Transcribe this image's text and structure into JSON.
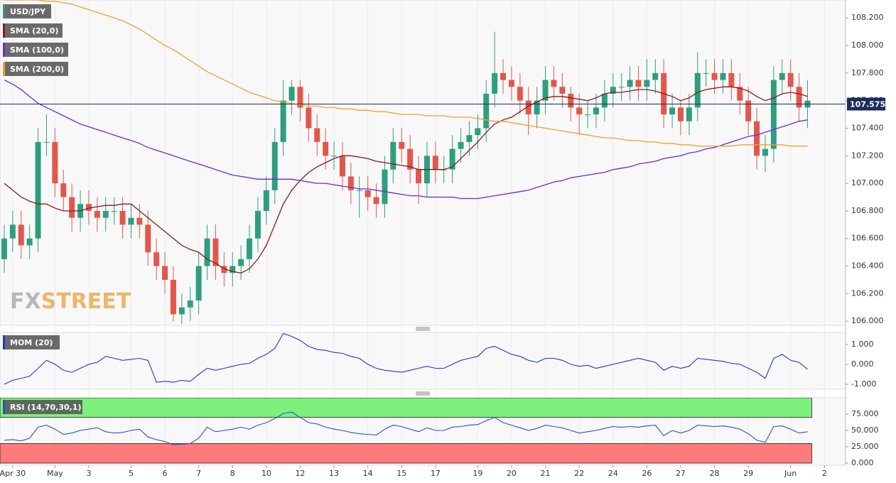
{
  "chart_data": [
    {
      "type": "candlestick",
      "title": "USD/JPY",
      "categories": [
        null,
        "Apr 30",
        null,
        null,
        null,
        null,
        "May",
        null,
        null,
        null,
        "3",
        null,
        null,
        null,
        null,
        "5",
        null,
        null,
        null,
        "6",
        null,
        null,
        null,
        "7",
        null,
        null,
        null,
        "8",
        null,
        null,
        null,
        "10",
        null,
        null,
        null,
        "12",
        null,
        null,
        null,
        "13",
        null,
        null,
        null,
        "14",
        null,
        null,
        null,
        "15",
        null,
        null,
        null,
        "17",
        null,
        null,
        null,
        null,
        "19",
        null,
        null,
        null,
        "20",
        null,
        null,
        null,
        "21",
        null,
        null,
        null,
        "22",
        null,
        null,
        null,
        "24",
        null,
        null,
        null,
        "26",
        null,
        null,
        null,
        "27",
        null,
        null,
        null,
        "28",
        null,
        null,
        null,
        "29",
        null,
        null,
        null,
        null,
        "Jun",
        null,
        null,
        null,
        "2",
        null,
        null
      ],
      "open": [
        106.45,
        106.6,
        106.7,
        106.55,
        106.6,
        107.3,
        107.3,
        107.0,
        106.9,
        106.75,
        106.85,
        106.8,
        106.75,
        106.8,
        106.8,
        106.7,
        106.75,
        106.7,
        106.5,
        106.4,
        106.3,
        106.05,
        106.1,
        106.15,
        106.4,
        106.6,
        106.4,
        106.35,
        106.4,
        106.45,
        106.6,
        106.8,
        106.95,
        107.3,
        107.6,
        107.7,
        107.55,
        107.4,
        107.3,
        107.2,
        107.2,
        107.05,
        106.95,
        106.95,
        106.9,
        106.85,
        107.1,
        107.3,
        107.25,
        107.1,
        107.0,
        107.2,
        107.1,
        107.1,
        107.25,
        107.3,
        107.35,
        107.4,
        107.65,
        107.8,
        107.75,
        107.7,
        107.6,
        107.5,
        107.6,
        107.75,
        107.7,
        107.65,
        107.55,
        107.5,
        107.5,
        107.55,
        107.65,
        107.7,
        107.7,
        107.75,
        107.7,
        107.75,
        107.8,
        107.5,
        107.55,
        107.45,
        107.55,
        107.8,
        107.8,
        107.75,
        107.8,
        107.7,
        107.6,
        107.45,
        107.2,
        107.25,
        107.75,
        107.8,
        107.7,
        107.55,
        null,
        null,
        null,
        null
      ],
      "high": [
        106.7,
        106.8,
        106.8,
        106.7,
        107.4,
        107.5,
        107.4,
        107.1,
        107.0,
        106.95,
        106.95,
        106.9,
        106.9,
        106.9,
        106.9,
        106.85,
        106.85,
        106.8,
        106.6,
        106.5,
        106.4,
        106.2,
        106.25,
        106.5,
        106.7,
        106.7,
        106.5,
        106.5,
        106.55,
        106.7,
        106.9,
        107.05,
        107.4,
        107.75,
        107.75,
        107.75,
        107.65,
        107.5,
        107.4,
        107.3,
        107.3,
        107.15,
        107.05,
        107.05,
        107.0,
        107.2,
        107.4,
        107.4,
        107.35,
        107.2,
        107.3,
        107.3,
        107.2,
        107.35,
        107.4,
        107.45,
        107.5,
        107.75,
        108.1,
        107.9,
        107.85,
        107.8,
        107.7,
        107.7,
        107.85,
        107.85,
        107.8,
        107.7,
        107.65,
        107.6,
        107.65,
        107.75,
        107.8,
        107.8,
        107.85,
        107.85,
        107.9,
        107.9,
        107.9,
        107.65,
        107.6,
        107.65,
        107.95,
        107.9,
        107.9,
        107.9,
        107.9,
        107.8,
        107.7,
        107.55,
        107.35,
        107.85,
        107.9,
        107.9,
        107.8,
        107.75,
        null,
        null,
        null,
        null
      ],
      "low": [
        106.35,
        106.5,
        106.45,
        106.45,
        106.5,
        107.2,
        106.9,
        106.8,
        106.65,
        106.65,
        106.7,
        106.65,
        106.65,
        106.7,
        106.6,
        106.6,
        106.6,
        106.4,
        106.3,
        106.2,
        106.0,
        105.98,
        106.0,
        106.05,
        106.3,
        106.3,
        106.25,
        106.25,
        106.3,
        106.35,
        106.5,
        106.7,
        106.85,
        107.2,
        107.5,
        107.45,
        107.3,
        107.2,
        107.1,
        107.1,
        106.95,
        106.85,
        106.75,
        106.8,
        106.75,
        106.75,
        107.0,
        107.15,
        107.0,
        106.85,
        106.9,
        107.0,
        107.0,
        107.0,
        107.15,
        107.2,
        107.25,
        107.3,
        107.55,
        107.65,
        107.6,
        107.5,
        107.35,
        107.4,
        107.5,
        107.6,
        107.55,
        107.45,
        107.35,
        107.4,
        107.4,
        107.45,
        107.55,
        107.6,
        107.6,
        107.6,
        107.6,
        107.65,
        107.4,
        107.4,
        107.35,
        107.35,
        107.45,
        107.7,
        107.65,
        107.65,
        107.6,
        107.5,
        107.35,
        107.1,
        107.08,
        107.15,
        107.65,
        107.6,
        107.45,
        107.4,
        null,
        null,
        null,
        null
      ],
      "close": [
        106.6,
        106.7,
        106.55,
        106.6,
        107.3,
        107.3,
        107.0,
        106.9,
        106.75,
        106.85,
        106.8,
        106.75,
        106.8,
        106.8,
        106.7,
        106.75,
        106.7,
        106.5,
        106.4,
        106.3,
        106.05,
        106.1,
        106.15,
        106.4,
        106.6,
        106.4,
        106.35,
        106.4,
        106.45,
        106.6,
        106.8,
        106.95,
        107.3,
        107.6,
        107.7,
        107.55,
        107.4,
        107.3,
        107.2,
        107.2,
        107.05,
        106.95,
        106.95,
        106.9,
        106.85,
        107.1,
        107.3,
        107.25,
        107.1,
        107.0,
        107.2,
        107.1,
        107.1,
        107.25,
        107.3,
        107.35,
        107.4,
        107.65,
        107.8,
        107.75,
        107.7,
        107.6,
        107.5,
        107.6,
        107.75,
        107.7,
        107.65,
        107.55,
        107.5,
        107.5,
        107.55,
        107.65,
        107.7,
        107.7,
        107.75,
        107.7,
        107.75,
        107.8,
        107.5,
        107.55,
        107.45,
        107.55,
        107.8,
        107.8,
        107.75,
        107.8,
        107.7,
        107.6,
        107.45,
        107.2,
        107.25,
        107.75,
        107.8,
        107.7,
        107.55,
        107.6,
        null,
        null,
        null,
        null
      ],
      "up_color": "#2f9e7f",
      "down_color": "#e2574c",
      "series": [
        {
          "name": "SMA (20,0)",
          "color": "#8b1a1a",
          "values": [
            107.0,
            106.95,
            106.9,
            106.87,
            106.85,
            106.85,
            106.82,
            106.8,
            106.8,
            106.8,
            106.82,
            106.83,
            106.84,
            106.84,
            106.85,
            106.85,
            106.8,
            106.75,
            106.7,
            106.65,
            106.6,
            106.55,
            106.52,
            106.5,
            106.45,
            106.42,
            106.38,
            106.36,
            106.35,
            106.38,
            106.45,
            106.55,
            106.7,
            106.85,
            106.95,
            107.02,
            107.08,
            107.12,
            107.15,
            107.18,
            107.2,
            107.2,
            107.19,
            107.18,
            107.16,
            107.15,
            107.14,
            107.13,
            107.12,
            107.1,
            107.1,
            107.1,
            107.1,
            107.12,
            107.18,
            107.24,
            107.3,
            107.37,
            107.43,
            107.46,
            107.48,
            107.52,
            107.56,
            107.59,
            107.62,
            107.63,
            107.63,
            107.62,
            107.61,
            107.6,
            107.62,
            107.65,
            107.66,
            107.66,
            107.67,
            107.68,
            107.68,
            107.67,
            107.65,
            107.63,
            107.6,
            107.62,
            107.66,
            107.68,
            107.69,
            107.7,
            107.7,
            107.69,
            107.67,
            107.63,
            107.6,
            107.62,
            107.65,
            107.66,
            107.65,
            107.63,
            null,
            null,
            null,
            null
          ]
        },
        {
          "name": "SMA (100,0)",
          "color": "#6a2bd9",
          "values": [
            107.75,
            107.72,
            107.68,
            107.63,
            107.58,
            107.55,
            107.52,
            107.49,
            107.46,
            107.43,
            107.41,
            107.39,
            107.37,
            107.35,
            107.33,
            107.31,
            107.29,
            107.26,
            107.24,
            107.22,
            107.2,
            107.18,
            107.16,
            107.14,
            107.12,
            107.1,
            107.08,
            107.06,
            107.05,
            107.04,
            107.03,
            107.03,
            107.03,
            107.03,
            107.03,
            107.02,
            107.01,
            107.0,
            107.0,
            106.99,
            106.98,
            106.97,
            106.96,
            106.96,
            106.95,
            106.94,
            106.93,
            106.92,
            106.91,
            106.91,
            106.9,
            106.9,
            106.9,
            106.9,
            106.89,
            106.89,
            106.89,
            106.9,
            106.91,
            106.92,
            106.93,
            106.94,
            106.95,
            106.97,
            106.99,
            107.01,
            107.02,
            107.04,
            107.05,
            107.06,
            107.07,
            107.08,
            107.1,
            107.11,
            107.12,
            107.14,
            107.15,
            107.16,
            107.18,
            107.19,
            107.2,
            107.22,
            107.23,
            107.25,
            107.26,
            107.28,
            107.3,
            107.32,
            107.34,
            107.35,
            107.37,
            107.39,
            107.41,
            107.43,
            107.45,
            107.46,
            null,
            null,
            null,
            null
          ]
        },
        {
          "name": "SMA (200,0)",
          "color": "#f0a030",
          "values": [
            108.33,
            108.33,
            108.33,
            108.33,
            108.33,
            108.32,
            108.32,
            108.31,
            108.3,
            108.28,
            108.26,
            108.24,
            108.22,
            108.2,
            108.18,
            108.15,
            108.12,
            108.08,
            108.04,
            108.0,
            107.97,
            107.93,
            107.89,
            107.85,
            107.81,
            107.78,
            107.75,
            107.72,
            107.69,
            107.66,
            107.64,
            107.62,
            107.6,
            107.59,
            107.58,
            107.57,
            107.56,
            107.56,
            107.55,
            107.55,
            107.54,
            107.54,
            107.53,
            107.53,
            107.52,
            107.52,
            107.51,
            107.5,
            107.5,
            107.5,
            107.49,
            107.49,
            107.49,
            107.48,
            107.48,
            107.48,
            107.47,
            107.46,
            107.45,
            107.45,
            107.44,
            107.43,
            107.42,
            107.41,
            107.4,
            107.39,
            107.38,
            107.37,
            107.36,
            107.35,
            107.34,
            107.33,
            107.33,
            107.32,
            107.31,
            107.31,
            107.3,
            107.3,
            107.29,
            107.29,
            107.28,
            107.28,
            107.27,
            107.27,
            107.27,
            107.27,
            107.27,
            107.28,
            107.28,
            107.28,
            107.28,
            107.28,
            107.28,
            107.27,
            107.27,
            107.27,
            null,
            null,
            null,
            null
          ]
        }
      ],
      "last_price": {
        "value": 107.575,
        "label": "107.575"
      },
      "ylim": [
        105.97,
        108.33
      ],
      "yticks": [
        {
          "value": 106.0,
          "label": "106.000"
        },
        {
          "value": 106.2,
          "label": "106.200"
        },
        {
          "value": 106.4,
          "label": "106.400"
        },
        {
          "value": 106.6,
          "label": "106.600"
        },
        {
          "value": 106.8,
          "label": "106.800"
        },
        {
          "value": 107.0,
          "label": "107.000"
        },
        {
          "value": 107.2,
          "label": "107.200"
        },
        {
          "value": 107.4,
          "label": "107.400"
        },
        {
          "value": 107.6,
          "label": "107.600"
        },
        {
          "value": 107.8,
          "label": "107.800"
        },
        {
          "value": 108.0,
          "label": "108.000"
        },
        {
          "value": 108.2,
          "label": "108.200"
        }
      ],
      "watermark": [
        "FX",
        "STREET"
      ]
    },
    {
      "type": "line",
      "title": "MOM (20)",
      "color": "#2235d8",
      "values": [
        -1.0,
        -0.8,
        -0.7,
        -0.6,
        -0.2,
        0.2,
        0.0,
        -0.3,
        -0.4,
        -0.2,
        0.0,
        0.1,
        0.4,
        0.3,
        0.2,
        0.25,
        0.3,
        0.2,
        -0.9,
        -0.85,
        -0.9,
        -0.8,
        -0.85,
        -0.5,
        -0.2,
        -0.3,
        -0.2,
        -0.1,
        0.0,
        0.05,
        0.3,
        0.5,
        0.8,
        1.55,
        1.4,
        1.2,
        0.9,
        0.75,
        0.7,
        0.6,
        0.55,
        0.4,
        0.3,
        0.0,
        -0.2,
        -0.3,
        -0.35,
        -0.4,
        -0.3,
        -0.2,
        -0.1,
        -0.2,
        -0.2,
        0.0,
        0.2,
        0.3,
        0.4,
        0.8,
        0.9,
        0.7,
        0.5,
        0.4,
        0.2,
        0.1,
        0.3,
        0.3,
        0.2,
        0.0,
        -0.1,
        -0.05,
        -0.2,
        -0.1,
        0.0,
        0.1,
        0.2,
        0.3,
        0.2,
        0.1,
        -0.3,
        -0.1,
        -0.2,
        -0.1,
        0.3,
        0.25,
        0.2,
        0.15,
        0.05,
        0.0,
        -0.2,
        -0.4,
        -0.7,
        0.3,
        0.5,
        0.2,
        0.1,
        -0.25,
        null,
        null,
        null,
        null
      ],
      "ylim": [
        -1.25,
        1.6
      ],
      "yticks": [
        {
          "value": -1,
          "label": "-1.000"
        },
        {
          "value": 0,
          "label": "0.000"
        },
        {
          "value": 1,
          "label": "1.000"
        }
      ]
    },
    {
      "type": "line",
      "title": "RSI (14,70,30,1)",
      "color": "#2f4fd0",
      "values": [
        35,
        36,
        34,
        38,
        55,
        58,
        52,
        44,
        46,
        50,
        52,
        54,
        48,
        46,
        47,
        50,
        52,
        40,
        36,
        33,
        28,
        29,
        30,
        38,
        55,
        48,
        50,
        52,
        55,
        52,
        58,
        62,
        68,
        76,
        78,
        70,
        62,
        60,
        55,
        52,
        50,
        47,
        45,
        44,
        43,
        52,
        58,
        56,
        52,
        48,
        54,
        50,
        50,
        55,
        56,
        58,
        59,
        65,
        70,
        62,
        58,
        54,
        50,
        53,
        58,
        56,
        54,
        50,
        46,
        48,
        50,
        53,
        56,
        55,
        56,
        55,
        57,
        58,
        42,
        50,
        46,
        50,
        58,
        57,
        56,
        57,
        55,
        52,
        45,
        35,
        32,
        56,
        57,
        52,
        46,
        48,
        null,
        null,
        null,
        null
      ],
      "overbought": 70,
      "oversold": 30,
      "overbought_color": "#7df07d",
      "oversold_color": "#ff7b7b",
      "ylim": [
        0,
        100
      ],
      "yticks": [
        {
          "value": 0,
          "label": "0.000"
        },
        {
          "value": 25,
          "label": "25.000"
        },
        {
          "value": 50,
          "label": "50.000"
        },
        {
          "value": 75,
          "label": "75.000"
        }
      ]
    }
  ]
}
